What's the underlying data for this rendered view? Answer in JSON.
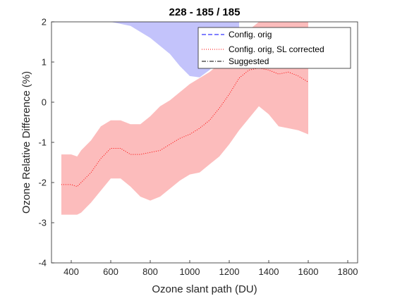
{
  "chart_data": {
    "type": "line",
    "title": "228 - 185 / 185",
    "xlabel": "Ozone slant path (DU)",
    "ylabel": "Ozone Relative Difference (%)",
    "xlim": [
      300,
      1850
    ],
    "ylim": [
      -4,
      2
    ],
    "xticks": [
      400,
      600,
      800,
      1000,
      1200,
      1400,
      1600,
      1800
    ],
    "yticks": [
      -4,
      -3,
      -2,
      -1,
      0,
      1,
      2
    ],
    "grid": false,
    "legend_position": "top-right",
    "legend": [
      "Config. orig",
      "Config. orig, SL corrected",
      "Suggested"
    ],
    "colors": {
      "config_orig": "#0000ff",
      "sl_corrected": "#ff0000",
      "suggested": "#000000",
      "band_blue": "#b8b8fa",
      "band_red": "#fcbcbc",
      "band_overlap": "#cfa6d9"
    },
    "series": [
      {
        "name": "Config. orig",
        "style": "dashed",
        "band_x": [
          450,
          600,
          700,
          800,
          900,
          950,
          1000,
          1050,
          1100,
          1150,
          1200,
          1250
        ],
        "band_upper": [
          2,
          2,
          2,
          2,
          2,
          2,
          2,
          2,
          2,
          2,
          2,
          2
        ],
        "band_lower": [
          2,
          2,
          1.9,
          1.6,
          1.2,
          0.9,
          0.65,
          0.62,
          0.8,
          1.05,
          1.3,
          1.55
        ]
      },
      {
        "name": "Config. orig, SL corrected",
        "style": "dotted",
        "x": [
          350,
          400,
          430,
          450,
          500,
          550,
          600,
          650,
          700,
          750,
          800,
          850,
          900,
          950,
          1000,
          1050,
          1100,
          1150,
          1200,
          1250,
          1300,
          1350,
          1400,
          1450,
          1500,
          1550,
          1600
        ],
        "y": [
          -2.05,
          -2.05,
          -2.1,
          -2.0,
          -1.75,
          -1.4,
          -1.15,
          -1.15,
          -1.3,
          -1.3,
          -1.25,
          -1.2,
          -1.05,
          -0.9,
          -0.8,
          -0.65,
          -0.45,
          -0.15,
          0.2,
          0.6,
          0.8,
          0.85,
          0.8,
          0.7,
          0.75,
          0.65,
          0.5
        ],
        "band_upper": [
          -1.3,
          -1.3,
          -1.35,
          -1.2,
          -0.95,
          -0.6,
          -0.45,
          -0.45,
          -0.55,
          -0.55,
          -0.35,
          -0.1,
          0.05,
          0.25,
          0.45,
          0.6,
          0.75,
          0.95,
          1.3,
          1.55,
          1.8,
          2.0,
          2.0,
          2.0,
          2.0,
          2.0,
          2.0
        ],
        "band_lower": [
          -2.8,
          -2.8,
          -2.8,
          -2.75,
          -2.5,
          -2.2,
          -1.9,
          -1.9,
          -2.1,
          -2.35,
          -2.45,
          -2.35,
          -2.15,
          -1.95,
          -1.8,
          -1.75,
          -1.55,
          -1.35,
          -1.05,
          -0.7,
          -0.4,
          -0.1,
          -0.3,
          -0.6,
          -0.65,
          -0.7,
          -0.8
        ]
      },
      {
        "name": "Suggested",
        "style": "dash-dot"
      }
    ]
  }
}
